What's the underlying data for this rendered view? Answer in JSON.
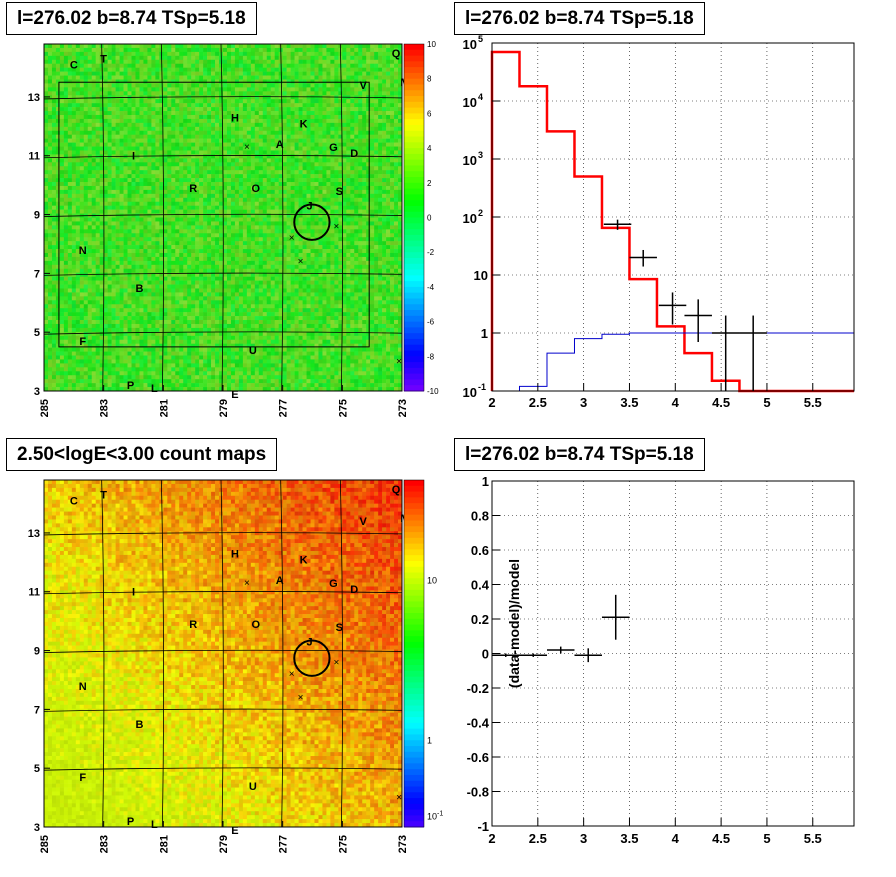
{
  "titles": {
    "tl": "l=276.02 b=8.74 TSp=5.18",
    "tr": "l=276.02 b=8.74 TSp=5.18",
    "bl": "2.50<logE<3.00 count maps",
    "br": "l=276.02 b=8.74 TSp=5.18"
  },
  "colors": {
    "model_line": "#ff0000",
    "component_line": "#0000cc",
    "data": "#000000"
  },
  "chart_data": [
    {
      "type": "heatmap",
      "id": "residual_map",
      "title": "l=276.02 b=8.74 TSp=5.18",
      "x_tick_labels": [
        "285",
        "283",
        "281",
        "279",
        "277",
        "275",
        "273"
      ],
      "y_tick_labels": [
        "3",
        "5",
        "7",
        "9",
        "11",
        "13"
      ],
      "xlim": [
        285,
        273
      ],
      "ylim": [
        3,
        14.8
      ],
      "colorbar": {
        "min": -10,
        "max": 10,
        "ticks": [
          "10",
          "8",
          "6",
          "4",
          "2",
          "0",
          "-2",
          "-4",
          "-6",
          "-8",
          "-10"
        ]
      },
      "source_labels": [
        {
          "name": "Q",
          "l": 273.2,
          "b": 14.5
        },
        {
          "name": "T",
          "l": 283.0,
          "b": 14.3
        },
        {
          "name": "C",
          "l": 284.0,
          "b": 14.1
        },
        {
          "name": "M",
          "l": 272.9,
          "b": 13.5
        },
        {
          "name": "V",
          "l": 274.3,
          "b": 13.4
        },
        {
          "name": "H",
          "l": 278.6,
          "b": 12.3
        },
        {
          "name": "K",
          "l": 276.3,
          "b": 12.1
        },
        {
          "name": "A",
          "l": 277.1,
          "b": 11.4
        },
        {
          "name": "G",
          "l": 275.3,
          "b": 11.3
        },
        {
          "name": "D",
          "l": 274.6,
          "b": 11.1
        },
        {
          "name": "I",
          "l": 282.0,
          "b": 11.0
        },
        {
          "name": "R",
          "l": 280.0,
          "b": 9.9
        },
        {
          "name": "O",
          "l": 277.9,
          "b": 9.9
        },
        {
          "name": "S",
          "l": 275.1,
          "b": 9.8
        },
        {
          "name": "J",
          "l": 276.1,
          "b": 9.3
        },
        {
          "name": "N",
          "l": 283.7,
          "b": 7.8
        },
        {
          "name": "B",
          "l": 281.8,
          "b": 6.5
        },
        {
          "name": "F",
          "l": 283.7,
          "b": 4.7
        },
        {
          "name": "U",
          "l": 278.0,
          "b": 4.4
        },
        {
          "name": "P",
          "l": 282.1,
          "b": 3.2
        },
        {
          "name": "L",
          "l": 281.3,
          "b": 3.1
        },
        {
          "name": "E",
          "l": 278.6,
          "b": 2.9
        }
      ],
      "crosses": [
        {
          "l": 278.2,
          "b": 11.3
        },
        {
          "l": 276.7,
          "b": 8.2
        },
        {
          "l": 276.4,
          "b": 7.4
        },
        {
          "l": 275.2,
          "b": 8.6
        },
        {
          "l": 273.1,
          "b": 4.0
        }
      ],
      "circle": {
        "l": 276.02,
        "b": 8.74,
        "r": 0.5
      }
    },
    {
      "type": "line",
      "id": "spectrum",
      "title": "l=276.02 b=8.74 TSp=5.18",
      "x_ticks": [
        2,
        2.5,
        3,
        3.5,
        4,
        4.5,
        5,
        5.5
      ],
      "x_tick_labels": [
        "2",
        "2.5",
        "3",
        "3.5",
        "4",
        "4.5",
        "5",
        "5.5"
      ],
      "xlim": [
        2,
        5.95
      ],
      "ylim": [
        0.1,
        100000
      ],
      "yscale": "log",
      "y_ticks": [
        0.1,
        1,
        10,
        100,
        1000,
        10000,
        100000
      ],
      "y_tick_labels": [
        [
          "10",
          "-1"
        ],
        [
          "1",
          ""
        ],
        [
          "10",
          ""
        ],
        [
          "10",
          "2"
        ],
        [
          "10",
          "3"
        ],
        [
          "10",
          "4"
        ],
        [
          "10",
          "5"
        ]
      ],
      "grid": true,
      "series": [
        {
          "style": "step",
          "color": "#ff0000",
          "edges": [
            2,
            2.3,
            2.6,
            2.9,
            3.2,
            3.5,
            3.8,
            4.1,
            4.4,
            4.7,
            5.0,
            5.95
          ],
          "values": [
            70000,
            18000,
            3000,
            500,
            65,
            8.5,
            1.3,
            0.45,
            0.15,
            0.1,
            0.1
          ]
        },
        {
          "style": "step",
          "color": "#0000cc",
          "edges": [
            2.3,
            2.6,
            2.9,
            3.2,
            3.5,
            3.8,
            5.95
          ],
          "values": [
            0.12,
            0.45,
            0.8,
            0.95,
            1.0,
            1.0
          ]
        },
        {
          "style": "errorbars",
          "color": "#000000",
          "points": [
            {
              "x": 3.37,
              "y": 75,
              "xerr": 0.15,
              "ylo": 60,
              "yhi": 90
            },
            {
              "x": 3.65,
              "y": 20,
              "xerr": 0.15,
              "ylo": 14,
              "yhi": 27
            },
            {
              "x": 3.97,
              "y": 3,
              "xerr": 0.15,
              "ylo": 1.4,
              "yhi": 5
            },
            {
              "x": 4.25,
              "y": 2,
              "xerr": 0.15,
              "ylo": 0.7,
              "yhi": 3.8
            },
            {
              "x": 4.55,
              "y": 1,
              "xerr": 0.15,
              "ylo": 0.1,
              "yhi": 2
            },
            {
              "x": 4.85,
              "y": 1,
              "xerr": 0.15,
              "ylo": 0.1,
              "yhi": 2
            }
          ]
        }
      ]
    },
    {
      "type": "heatmap",
      "id": "count_map",
      "title": "2.50<logE<3.00 count maps",
      "x_tick_labels": [
        "285",
        "283",
        "281",
        "279",
        "277",
        "275",
        "273"
      ],
      "y_tick_labels": [
        "3",
        "5",
        "7",
        "9",
        "11",
        "13"
      ],
      "xlim": [
        285,
        273
      ],
      "ylim": [
        3,
        14.8
      ],
      "colorbar": {
        "scale": "log",
        "ticks": [
          "10",
          "1",
          "10^-1"
        ]
      },
      "source_labels": "same as residual_map",
      "circle": {
        "l": 276.02,
        "b": 8.74,
        "r": 0.5
      }
    },
    {
      "type": "scatter",
      "id": "residuals",
      "title": "l=276.02 b=8.74 TSp=5.18",
      "ylabel": "(data-model)/model",
      "x_ticks": [
        2,
        2.5,
        3,
        3.5,
        4,
        4.5,
        5,
        5.5
      ],
      "x_tick_labels": [
        "2",
        "2.5",
        "3",
        "3.5",
        "4",
        "4.5",
        "5",
        "5.5"
      ],
      "y_ticks": [
        -1,
        -0.8,
        -0.6,
        -0.4,
        -0.2,
        0,
        0.2,
        0.4,
        0.6,
        0.8,
        1
      ],
      "y_tick_labels": [
        "-1",
        "-0.8",
        "-0.6",
        "-0.4",
        "-0.2",
        "0",
        "0.2",
        "0.4",
        "0.6",
        "0.8",
        "1"
      ],
      "xlim": [
        2,
        5.95
      ],
      "ylim": [
        -1,
        1
      ],
      "grid": true,
      "points": [
        {
          "x": 2.15,
          "y": -0.01,
          "xerr": 0.15,
          "yerr": 0.01
        },
        {
          "x": 2.45,
          "y": -0.01,
          "xerr": 0.15,
          "yerr": 0.01
        },
        {
          "x": 2.75,
          "y": 0.02,
          "xerr": 0.15,
          "yerr": 0.02
        },
        {
          "x": 3.05,
          "y": -0.01,
          "xerr": 0.15,
          "yerr": 0.04
        },
        {
          "x": 3.35,
          "y": 0.21,
          "xerr": 0.15,
          "yerr": 0.13
        }
      ]
    }
  ]
}
